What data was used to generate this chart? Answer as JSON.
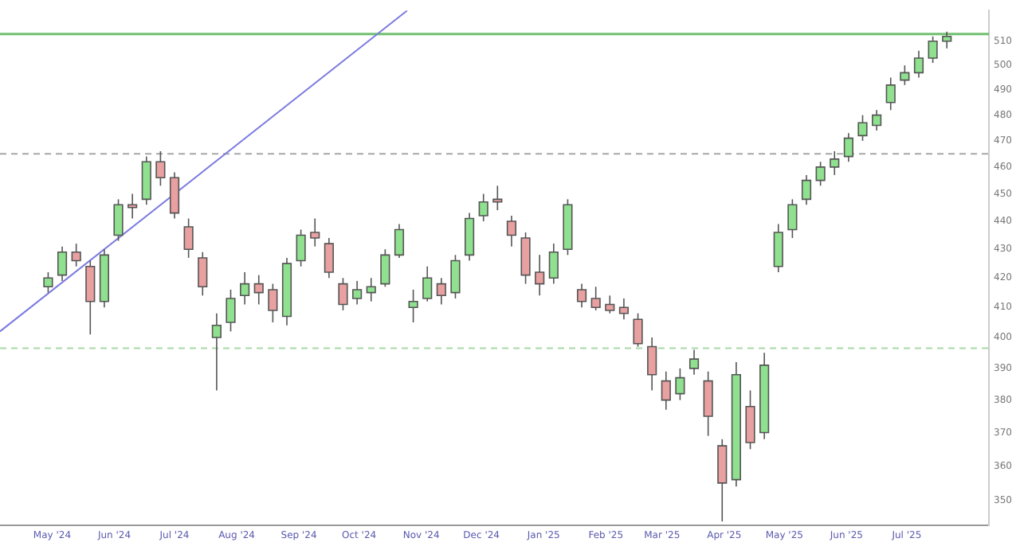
{
  "chart_data": {
    "type": "candlestick",
    "x": [
      "2024-04-29",
      "2024-05-06",
      "2024-05-13",
      "2024-05-20",
      "2024-05-27",
      "2024-06-03",
      "2024-06-10",
      "2024-06-17",
      "2024-06-24",
      "2024-07-01",
      "2024-07-08",
      "2024-07-15",
      "2024-07-22",
      "2024-07-29",
      "2024-08-05",
      "2024-08-12",
      "2024-08-19",
      "2024-08-26",
      "2024-09-02",
      "2024-09-09",
      "2024-09-16",
      "2024-09-23",
      "2024-09-30",
      "2024-10-07",
      "2024-10-14",
      "2024-10-21",
      "2024-10-28",
      "2024-11-04",
      "2024-11-11",
      "2024-11-18",
      "2024-11-25",
      "2024-12-02",
      "2024-12-09",
      "2024-12-16",
      "2024-12-23",
      "2024-12-30",
      "2025-01-06",
      "2025-01-13",
      "2025-01-20",
      "2025-01-27",
      "2025-02-03",
      "2025-02-10",
      "2025-02-17",
      "2025-02-24",
      "2025-03-03",
      "2025-03-10",
      "2025-03-17",
      "2025-03-24",
      "2025-03-31",
      "2025-04-07",
      "2025-04-14",
      "2025-04-21",
      "2025-04-28",
      "2025-05-05",
      "2025-05-12",
      "2025-05-19",
      "2025-05-26",
      "2025-06-02",
      "2025-06-09",
      "2025-06-16",
      "2025-06-23",
      "2025-06-30",
      "2025-07-07",
      "2025-07-14",
      "2025-07-21"
    ],
    "ohlc": [
      [
        417,
        422,
        415,
        420
      ],
      [
        421,
        431,
        419,
        429
      ],
      [
        429,
        432,
        424,
        426
      ],
      [
        424,
        426,
        401,
        412
      ],
      [
        412,
        430,
        410,
        428
      ],
      [
        435,
        448,
        433,
        446
      ],
      [
        446,
        450,
        441,
        445
      ],
      [
        448,
        464,
        446,
        462
      ],
      [
        462,
        466,
        453,
        456
      ],
      [
        456,
        458,
        441,
        443
      ],
      [
        438,
        441,
        427,
        430
      ],
      [
        427,
        429,
        414,
        417
      ],
      [
        400,
        408,
        383,
        404
      ],
      [
        405,
        416,
        402,
        413
      ],
      [
        414,
        422,
        411,
        418
      ],
      [
        418,
        421,
        411,
        415
      ],
      [
        416,
        418,
        405,
        409
      ],
      [
        407,
        427,
        404,
        425
      ],
      [
        426,
        437,
        424,
        435
      ],
      [
        436,
        441,
        431,
        434
      ],
      [
        432,
        434,
        420,
        422
      ],
      [
        418,
        420,
        409,
        411
      ],
      [
        413,
        419,
        411,
        416
      ],
      [
        415,
        420,
        412,
        417
      ],
      [
        418,
        430,
        417,
        428
      ],
      [
        428,
        439,
        427,
        437
      ],
      [
        410,
        416,
        405,
        412
      ],
      [
        413,
        424,
        412,
        420
      ],
      [
        418,
        420,
        411,
        414
      ],
      [
        415,
        428,
        413,
        426
      ],
      [
        428,
        443,
        426,
        441
      ],
      [
        442,
        450,
        440,
        447
      ],
      [
        448,
        453,
        444,
        447
      ],
      [
        440,
        442,
        431,
        435
      ],
      [
        434,
        436,
        418,
        421
      ],
      [
        422,
        428,
        414,
        418
      ],
      [
        420,
        432,
        418,
        429
      ],
      [
        430,
        448,
        428,
        446
      ],
      [
        416,
        418,
        410,
        412
      ],
      [
        413,
        417,
        409,
        410
      ],
      [
        411,
        414,
        408,
        409
      ],
      [
        410,
        413,
        406,
        408
      ],
      [
        406,
        408,
        397,
        398
      ],
      [
        397,
        400,
        383,
        388
      ],
      [
        386,
        389,
        377,
        380
      ],
      [
        382,
        390,
        380,
        387
      ],
      [
        390,
        396,
        388,
        393
      ],
      [
        386,
        389,
        369,
        375
      ],
      [
        366,
        368,
        344,
        355
      ],
      [
        356,
        392,
        354,
        388
      ],
      [
        378,
        383,
        365,
        367
      ],
      [
        370,
        395,
        368,
        391
      ],
      [
        424,
        439,
        422,
        436
      ],
      [
        437,
        448,
        434,
        446
      ],
      [
        448,
        457,
        446,
        455
      ],
      [
        455,
        462,
        453,
        460
      ],
      [
        460,
        466,
        457,
        463
      ],
      [
        464,
        473,
        462,
        471
      ],
      [
        472,
        480,
        470,
        477
      ],
      [
        476,
        482,
        474,
        480
      ],
      [
        485,
        495,
        482,
        492
      ],
      [
        494,
        500,
        492,
        497
      ],
      [
        497,
        506,
        495,
        503
      ],
      [
        503,
        512,
        501,
        510
      ],
      [
        510,
        514,
        507,
        512
      ]
    ],
    "series": [
      {
        "type": "line",
        "x": [
          "2024-04-05",
          "2024-10-25"
        ],
        "values": [
          402,
          523
        ],
        "color": "#7b7be0"
      }
    ],
    "xlim": [
      "2024-04-05",
      "2025-08-11"
    ],
    "xticks": [
      {
        "value": "2024-05-01",
        "label": "May '24"
      },
      {
        "value": "2024-06-01",
        "label": "Jun '24"
      },
      {
        "value": "2024-07-01",
        "label": "Jul '24"
      },
      {
        "value": "2024-08-01",
        "label": "Aug '24"
      },
      {
        "value": "2024-09-01",
        "label": "Sep '24"
      },
      {
        "value": "2024-10-01",
        "label": "Oct '24"
      },
      {
        "value": "2024-11-01",
        "label": "Nov '24"
      },
      {
        "value": "2024-12-01",
        "label": "Dec '24"
      },
      {
        "value": "2025-01-01",
        "label": "Jan '25"
      },
      {
        "value": "2025-02-01",
        "label": "Feb '25"
      },
      {
        "value": "2025-03-01",
        "label": "Mar '25"
      },
      {
        "value": "2025-04-01",
        "label": "Apr '25"
      },
      {
        "value": "2025-05-01",
        "label": "May '25"
      },
      {
        "value": "2025-06-01",
        "label": "Jun '25"
      },
      {
        "value": "2025-07-01",
        "label": "Jul '25"
      }
    ],
    "ylim": [
      343,
      523
    ],
    "yticks": [
      350,
      360,
      370,
      380,
      390,
      400,
      410,
      420,
      430,
      440,
      450,
      460,
      470,
      480,
      490,
      500,
      510
    ],
    "log": true,
    "ref_lines": [
      {
        "axis": "y",
        "value": 465,
        "color": "#a8a8a8",
        "line_style": "dashed"
      },
      {
        "axis": "y",
        "value": 396.5,
        "color": "#a8d8a8",
        "line_style": "dashed"
      },
      {
        "axis": "y",
        "value": 513,
        "color": "#70c070",
        "line_style": "solid"
      }
    ]
  }
}
